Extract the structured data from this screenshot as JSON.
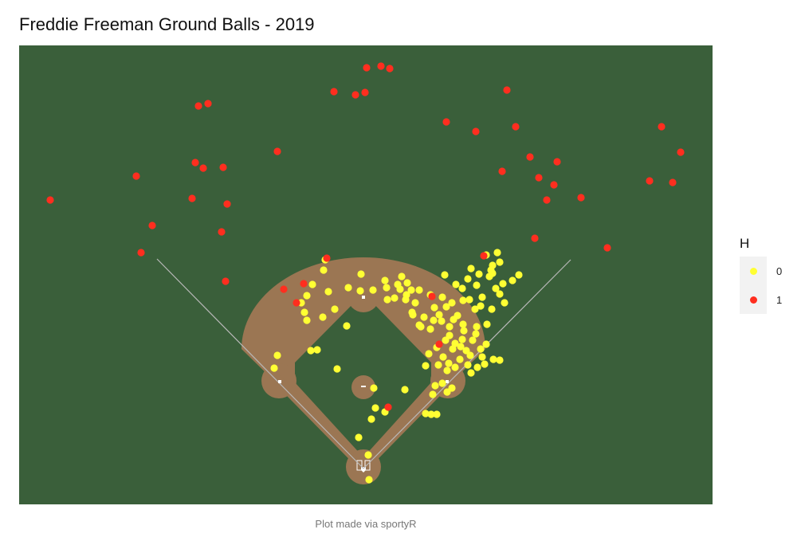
{
  "chart_data": {
    "type": "scatter",
    "title": "Freddie Freeman Ground Balls - 2019",
    "caption": "Plot made via sportyR",
    "xlabel": "",
    "ylabel": "",
    "grid": false,
    "legend_position": "right",
    "legend": {
      "title": "H",
      "entries": [
        {
          "label": "0",
          "color": "#ffff33"
        },
        {
          "label": "1",
          "color": "#ff2e1f"
        }
      ]
    },
    "colors": {
      "field_grass": "#3a5f3a",
      "infield_dirt": "#9b7653",
      "foul_line": "#b8b8b8",
      "out": "#ffff33",
      "hit": "#ff2e1f"
    },
    "series": [
      {
        "name": "0",
        "points": [
          [
            406,
            339
          ],
          [
            408,
            326
          ],
          [
            392,
            357
          ],
          [
            385,
            371
          ],
          [
            378,
            380
          ],
          [
            382,
            392
          ],
          [
            385,
            402
          ],
          [
            405,
            398
          ],
          [
            420,
            388
          ],
          [
            412,
            366
          ],
          [
            437,
            361
          ],
          [
            452,
            365
          ],
          [
            453,
            344
          ],
          [
            468,
            364
          ],
          [
            483,
            352
          ],
          [
            485,
            361
          ],
          [
            499,
            357
          ],
          [
            504,
            347
          ],
          [
            511,
            355
          ],
          [
            516,
            364
          ],
          [
            509,
            376
          ],
          [
            495,
            374
          ],
          [
            486,
            376
          ],
          [
            521,
            380
          ],
          [
            526,
            364
          ],
          [
            540,
            370
          ],
          [
            517,
            392
          ],
          [
            532,
            398
          ],
          [
            545,
            386
          ],
          [
            551,
            395
          ],
          [
            544,
            402
          ],
          [
            528,
            410
          ],
          [
            558,
            345
          ],
          [
            572,
            357
          ],
          [
            580,
            362
          ],
          [
            591,
            337
          ],
          [
            587,
            350
          ],
          [
            598,
            358
          ],
          [
            601,
            344
          ],
          [
            581,
            377
          ],
          [
            589,
            376
          ],
          [
            603,
            384
          ],
          [
            605,
            373
          ],
          [
            614,
            347
          ],
          [
            618,
            333
          ],
          [
            627,
            329
          ],
          [
            624,
            317
          ],
          [
            631,
            356
          ],
          [
            643,
            352
          ],
          [
            651,
            345
          ],
          [
            633,
            380
          ],
          [
            627,
            369
          ],
          [
            618,
            343
          ],
          [
            617,
            388
          ],
          [
            611,
            407
          ],
          [
            598,
            410
          ],
          [
            581,
            407
          ],
          [
            569,
            401
          ],
          [
            554,
            403
          ],
          [
            564,
            421
          ],
          [
            571,
            431
          ],
          [
            559,
            427
          ],
          [
            548,
            436
          ],
          [
            538,
            444
          ],
          [
            534,
            459
          ],
          [
            550,
            458
          ],
          [
            563,
            456
          ],
          [
            577,
            451
          ],
          [
            590,
            446
          ],
          [
            603,
            438
          ],
          [
            610,
            432
          ],
          [
            585,
            440
          ],
          [
            580,
            426
          ],
          [
            597,
            419
          ],
          [
            591,
            468
          ],
          [
            599,
            461
          ],
          [
            608,
            457
          ],
          [
            619,
            451
          ],
          [
            627,
            452
          ],
          [
            561,
            465
          ],
          [
            571,
            461
          ],
          [
            546,
            484
          ],
          [
            555,
            481
          ],
          [
            561,
            492
          ],
          [
            567,
            487
          ],
          [
            543,
            495
          ],
          [
            548,
            520
          ],
          [
            541,
            520
          ],
          [
            534,
            519
          ],
          [
            508,
            489
          ],
          [
            469,
            487
          ],
          [
            471,
            512
          ],
          [
            483,
            517
          ],
          [
            466,
            526
          ],
          [
            450,
            549
          ],
          [
            462,
            571
          ],
          [
            463,
            602
          ],
          [
            423,
            463
          ],
          [
            435,
            409
          ],
          [
            398,
            439
          ],
          [
            390,
            440
          ],
          [
            348,
            446
          ],
          [
            344,
            462
          ],
          [
            560,
            385
          ],
          [
            574,
            396
          ],
          [
            582,
            415
          ],
          [
            593,
            427
          ],
          [
            605,
            448
          ],
          [
            568,
            438
          ],
          [
            556,
            448
          ],
          [
            587,
            458
          ],
          [
            578,
            435
          ],
          [
            564,
            410
          ],
          [
            540,
            413
          ],
          [
            526,
            408
          ],
          [
            518,
            395
          ],
          [
            510,
            370
          ],
          [
            502,
            363
          ],
          [
            555,
            373
          ],
          [
            567,
            380
          ],
          [
            596,
            388
          ],
          [
            616,
            339
          ],
          [
            610,
            320
          ],
          [
            622,
            362
          ]
        ]
      },
      {
        "name": "1",
        "points": [
          [
            63,
            251
          ],
          [
            171,
            221
          ],
          [
            177,
            317
          ],
          [
            191,
            283
          ],
          [
            241,
            249
          ],
          [
            245,
            204
          ],
          [
            255,
            211
          ],
          [
            249,
            133
          ],
          [
            261,
            130
          ],
          [
            280,
            210
          ],
          [
            285,
            256
          ],
          [
            278,
            291
          ],
          [
            283,
            353
          ],
          [
            348,
            190
          ],
          [
            356,
            363
          ],
          [
            372,
            380
          ],
          [
            381,
            356
          ],
          [
            410,
            324
          ],
          [
            419,
            115
          ],
          [
            446,
            119
          ],
          [
            458,
            116
          ],
          [
            460,
            85
          ],
          [
            478,
            83
          ],
          [
            489,
            86
          ],
          [
            560,
            153
          ],
          [
            597,
            165
          ],
          [
            636,
            113
          ],
          [
            647,
            159
          ],
          [
            630,
            215
          ],
          [
            665,
            197
          ],
          [
            699,
            203
          ],
          [
            676,
            223
          ],
          [
            695,
            232
          ],
          [
            686,
            251
          ],
          [
            729,
            248
          ],
          [
            671,
            299
          ],
          [
            762,
            311
          ],
          [
            815,
            227
          ],
          [
            844,
            229
          ],
          [
            854,
            191
          ],
          [
            830,
            159
          ],
          [
            607,
            321
          ],
          [
            551,
            432
          ],
          [
            542,
            372
          ],
          [
            487,
            511
          ]
        ]
      }
    ]
  }
}
